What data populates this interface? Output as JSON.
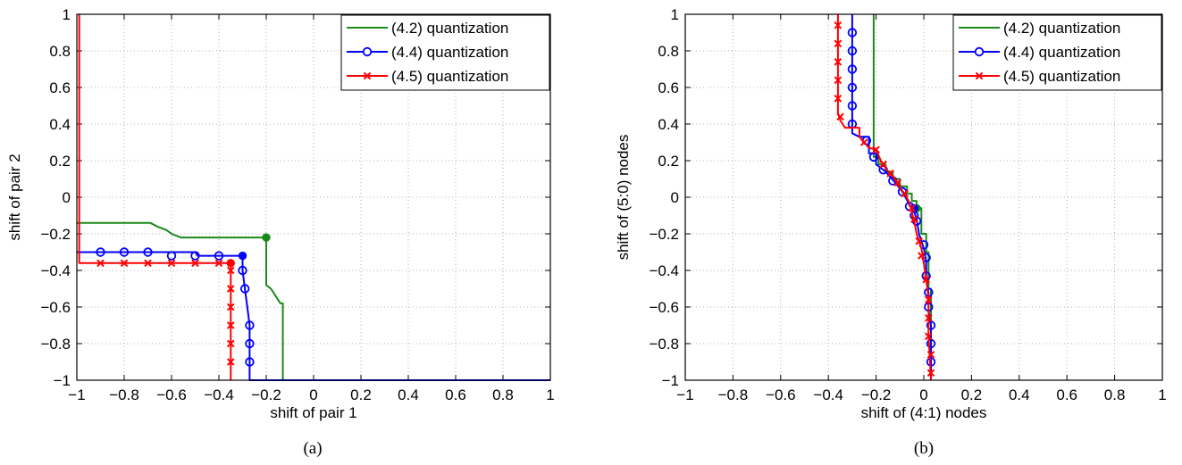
{
  "colors": {
    "green": "#1a8a1a",
    "blue": "#0000ff",
    "red": "#ff0000"
  },
  "chart_data": [
    {
      "type": "line",
      "caption": "(a)",
      "xlabel": "shift of pair 1",
      "ylabel": "shift of pair 2",
      "xlim": [
        -1,
        1
      ],
      "ylim": [
        -1,
        1
      ],
      "xticks": [
        -1,
        -0.8,
        -0.6,
        -0.4,
        -0.2,
        0,
        0.2,
        0.4,
        0.6,
        0.8,
        1
      ],
      "yticks": [
        -1,
        -0.8,
        -0.6,
        -0.4,
        -0.2,
        0,
        0.2,
        0.4,
        0.6,
        0.8,
        1
      ],
      "xtick_labels": [
        "−1",
        "−0.8",
        "−0.6",
        "−0.4",
        "−0.2",
        "0",
        "0.2",
        "0.4",
        "0.6",
        "0.8",
        "1"
      ],
      "ytick_labels": [
        "−1",
        "−0.8",
        "−0.6",
        "−0.4",
        "−0.2",
        "0",
        "0.2",
        "0.4",
        "0.6",
        "0.8",
        "1"
      ],
      "grid": true,
      "legend": "top-right",
      "series": [
        {
          "name": "(4.2) quantization",
          "color": "green",
          "marker": "none",
          "points": [
            [
              -1,
              -0.14
            ],
            [
              -0.69,
              -0.14
            ],
            [
              -0.66,
              -0.16
            ],
            [
              -0.62,
              -0.18
            ],
            [
              -0.6,
              -0.2
            ],
            [
              -0.56,
              -0.22
            ],
            [
              -0.2,
              -0.22
            ],
            [
              -0.2,
              -0.48
            ],
            [
              -0.18,
              -0.5
            ],
            [
              -0.16,
              -0.54
            ],
            [
              -0.14,
              -0.58
            ],
            [
              -0.13,
              -0.58
            ],
            [
              -0.13,
              -1
            ],
            [
              1,
              -1
            ]
          ],
          "dot": [
            -0.2,
            -0.22
          ]
        },
        {
          "name": "(4.4) quantization",
          "color": "blue",
          "marker": "circle",
          "points": [
            [
              -1,
              -0.3
            ],
            [
              -0.5,
              -0.3
            ],
            [
              -0.49,
              -0.32
            ],
            [
              -0.3,
              -0.32
            ],
            [
              -0.3,
              -0.4
            ],
            [
              -0.29,
              -0.5
            ],
            [
              -0.28,
              -0.6
            ],
            [
              -0.27,
              -0.7
            ],
            [
              -0.27,
              -1
            ],
            [
              1,
              -1
            ]
          ],
          "markers": [
            [
              -0.9,
              -0.3
            ],
            [
              -0.8,
              -0.3
            ],
            [
              -0.7,
              -0.3
            ],
            [
              -0.6,
              -0.32
            ],
            [
              -0.5,
              -0.32
            ],
            [
              -0.4,
              -0.32
            ],
            [
              -0.3,
              -0.4
            ],
            [
              -0.29,
              -0.5
            ],
            [
              -0.27,
              -0.7
            ],
            [
              -0.27,
              -0.8
            ],
            [
              -0.27,
              -0.9
            ]
          ],
          "dot": [
            -0.3,
            -0.32
          ]
        },
        {
          "name": "(4.5) quantization",
          "color": "red",
          "marker": "x",
          "points": [
            [
              -0.99,
              1
            ],
            [
              -0.99,
              -0.36
            ],
            [
              -0.35,
              -0.36
            ],
            [
              -0.35,
              -1
            ]
          ],
          "markers": [
            [
              -0.9,
              -0.36
            ],
            [
              -0.8,
              -0.36
            ],
            [
              -0.7,
              -0.36
            ],
            [
              -0.6,
              -0.36
            ],
            [
              -0.5,
              -0.36
            ],
            [
              -0.4,
              -0.36
            ],
            [
              -0.35,
              -0.4
            ],
            [
              -0.35,
              -0.5
            ],
            [
              -0.35,
              -0.6
            ],
            [
              -0.35,
              -0.7
            ],
            [
              -0.35,
              -0.8
            ],
            [
              -0.35,
              -0.9
            ]
          ],
          "dot": [
            -0.35,
            -0.36
          ]
        }
      ]
    },
    {
      "type": "line",
      "caption": "(b)",
      "xlabel": "shift of (4:1) nodes",
      "ylabel": "shift of (5:0) nodes",
      "xlim": [
        -1,
        1
      ],
      "ylim": [
        -1,
        1
      ],
      "xticks": [
        -1,
        -0.8,
        -0.6,
        -0.4,
        -0.2,
        0,
        0.2,
        0.4,
        0.6,
        0.8,
        1
      ],
      "yticks": [
        -1,
        -0.8,
        -0.6,
        -0.4,
        -0.2,
        0,
        0.2,
        0.4,
        0.6,
        0.8,
        1
      ],
      "xtick_labels": [
        "−1",
        "−0.8",
        "−0.6",
        "−0.4",
        "−0.2",
        "0",
        "0.2",
        "0.4",
        "0.6",
        "0.8",
        "1"
      ],
      "ytick_labels": [
        "−1",
        "−0.8",
        "−0.6",
        "−0.4",
        "−0.2",
        "0",
        "0.2",
        "0.4",
        "0.6",
        "0.8",
        "1"
      ],
      "grid": true,
      "legend": "top-right",
      "series": [
        {
          "name": "(4.2) quantization",
          "color": "green",
          "marker": "none",
          "points": [
            [
              -0.21,
              1
            ],
            [
              -0.21,
              0.22
            ],
            [
              -0.19,
              0.22
            ],
            [
              -0.19,
              0.18
            ],
            [
              -0.16,
              0.18
            ],
            [
              -0.16,
              0.14
            ],
            [
              -0.13,
              0.14
            ],
            [
              -0.13,
              0.1
            ],
            [
              -0.1,
              0.1
            ],
            [
              -0.1,
              0.06
            ],
            [
              -0.07,
              0.06
            ],
            [
              -0.07,
              0.02
            ],
            [
              -0.05,
              0.02
            ],
            [
              -0.05,
              -0.02
            ],
            [
              -0.03,
              -0.02
            ],
            [
              -0.03,
              -0.06
            ],
            [
              -0.01,
              -0.06
            ],
            [
              -0.01,
              -0.2
            ],
            [
              0.01,
              -0.2
            ],
            [
              0.01,
              -0.3
            ],
            [
              0.02,
              -0.3
            ],
            [
              0.02,
              -0.5
            ],
            [
              0.03,
              -0.5
            ],
            [
              0.03,
              -1
            ]
          ],
          "dot": [
            -0.03,
            -0.06
          ]
        },
        {
          "name": "(4.4) quantization",
          "color": "blue",
          "marker": "circle",
          "points": [
            [
              -0.3,
              1
            ],
            [
              -0.3,
              0.35
            ],
            [
              -0.27,
              0.33
            ],
            [
              -0.23,
              0.33
            ],
            [
              -0.23,
              0.24
            ],
            [
              -0.2,
              0.24
            ],
            [
              -0.2,
              0.18
            ],
            [
              -0.16,
              0.14
            ],
            [
              -0.12,
              0.08
            ],
            [
              -0.09,
              0.03
            ],
            [
              -0.06,
              -0.04
            ],
            [
              -0.04,
              -0.08
            ],
            [
              -0.03,
              -0.12
            ],
            [
              -0.02,
              -0.2
            ],
            [
              0,
              -0.28
            ],
            [
              0.01,
              -0.35
            ],
            [
              0.01,
              -0.45
            ],
            [
              0.02,
              -0.52
            ],
            [
              0.02,
              -0.62
            ],
            [
              0.03,
              -0.7
            ],
            [
              0.03,
              -1
            ]
          ],
          "markers": [
            [
              -0.3,
              0.9
            ],
            [
              -0.3,
              0.8
            ],
            [
              -0.3,
              0.7
            ],
            [
              -0.3,
              0.6
            ],
            [
              -0.3,
              0.5
            ],
            [
              -0.3,
              0.4
            ],
            [
              -0.24,
              0.31
            ],
            [
              -0.21,
              0.22
            ],
            [
              -0.17,
              0.15
            ],
            [
              -0.13,
              0.09
            ],
            [
              -0.09,
              0.03
            ],
            [
              -0.06,
              -0.05
            ],
            [
              -0.04,
              -0.1
            ],
            [
              -0.03,
              -0.13
            ],
            [
              0,
              -0.26
            ],
            [
              0.01,
              -0.33
            ],
            [
              0.01,
              -0.43
            ],
            [
              0.02,
              -0.52
            ],
            [
              0.02,
              -0.6
            ],
            [
              0.03,
              -0.7
            ],
            [
              0.03,
              -0.8
            ],
            [
              0.03,
              -0.9
            ]
          ],
          "dot": [
            -0.04,
            -0.06
          ]
        },
        {
          "name": "(4.5) quantization",
          "color": "red",
          "marker": "x",
          "points": [
            [
              -0.36,
              1
            ],
            [
              -0.36,
              0.46
            ],
            [
              -0.35,
              0.42
            ],
            [
              -0.33,
              0.38
            ],
            [
              -0.27,
              0.38
            ],
            [
              -0.27,
              0.33
            ],
            [
              -0.25,
              0.3
            ],
            [
              -0.23,
              0.27
            ],
            [
              -0.2,
              0.26
            ],
            [
              -0.18,
              0.2
            ],
            [
              -0.15,
              0.14
            ],
            [
              -0.12,
              0.1
            ],
            [
              -0.1,
              0.05
            ],
            [
              -0.08,
              0.02
            ],
            [
              -0.06,
              -0.03
            ],
            [
              -0.05,
              -0.08
            ],
            [
              -0.04,
              -0.13
            ],
            [
              -0.03,
              -0.2
            ],
            [
              -0.01,
              -0.28
            ],
            [
              0,
              -0.36
            ],
            [
              0.01,
              -0.45
            ],
            [
              0.02,
              -0.55
            ],
            [
              0.02,
              -0.75
            ],
            [
              0.03,
              -1
            ]
          ],
          "markers": [
            [
              -0.36,
              0.94
            ],
            [
              -0.36,
              0.84
            ],
            [
              -0.36,
              0.74
            ],
            [
              -0.36,
              0.64
            ],
            [
              -0.36,
              0.54
            ],
            [
              -0.35,
              0.44
            ],
            [
              -0.25,
              0.3
            ],
            [
              -0.2,
              0.26
            ],
            [
              -0.17,
              0.18
            ],
            [
              -0.14,
              0.13
            ],
            [
              -0.11,
              0.08
            ],
            [
              -0.08,
              0.02
            ],
            [
              -0.05,
              -0.06
            ],
            [
              -0.04,
              -0.12
            ],
            [
              -0.02,
              -0.24
            ],
            [
              -0.01,
              -0.32
            ],
            [
              0.01,
              -0.45
            ],
            [
              0.02,
              -0.56
            ],
            [
              0.02,
              -0.66
            ],
            [
              0.02,
              -0.76
            ],
            [
              0.03,
              -0.86
            ],
            [
              0.03,
              -0.96
            ]
          ],
          "dot": null
        }
      ]
    }
  ]
}
